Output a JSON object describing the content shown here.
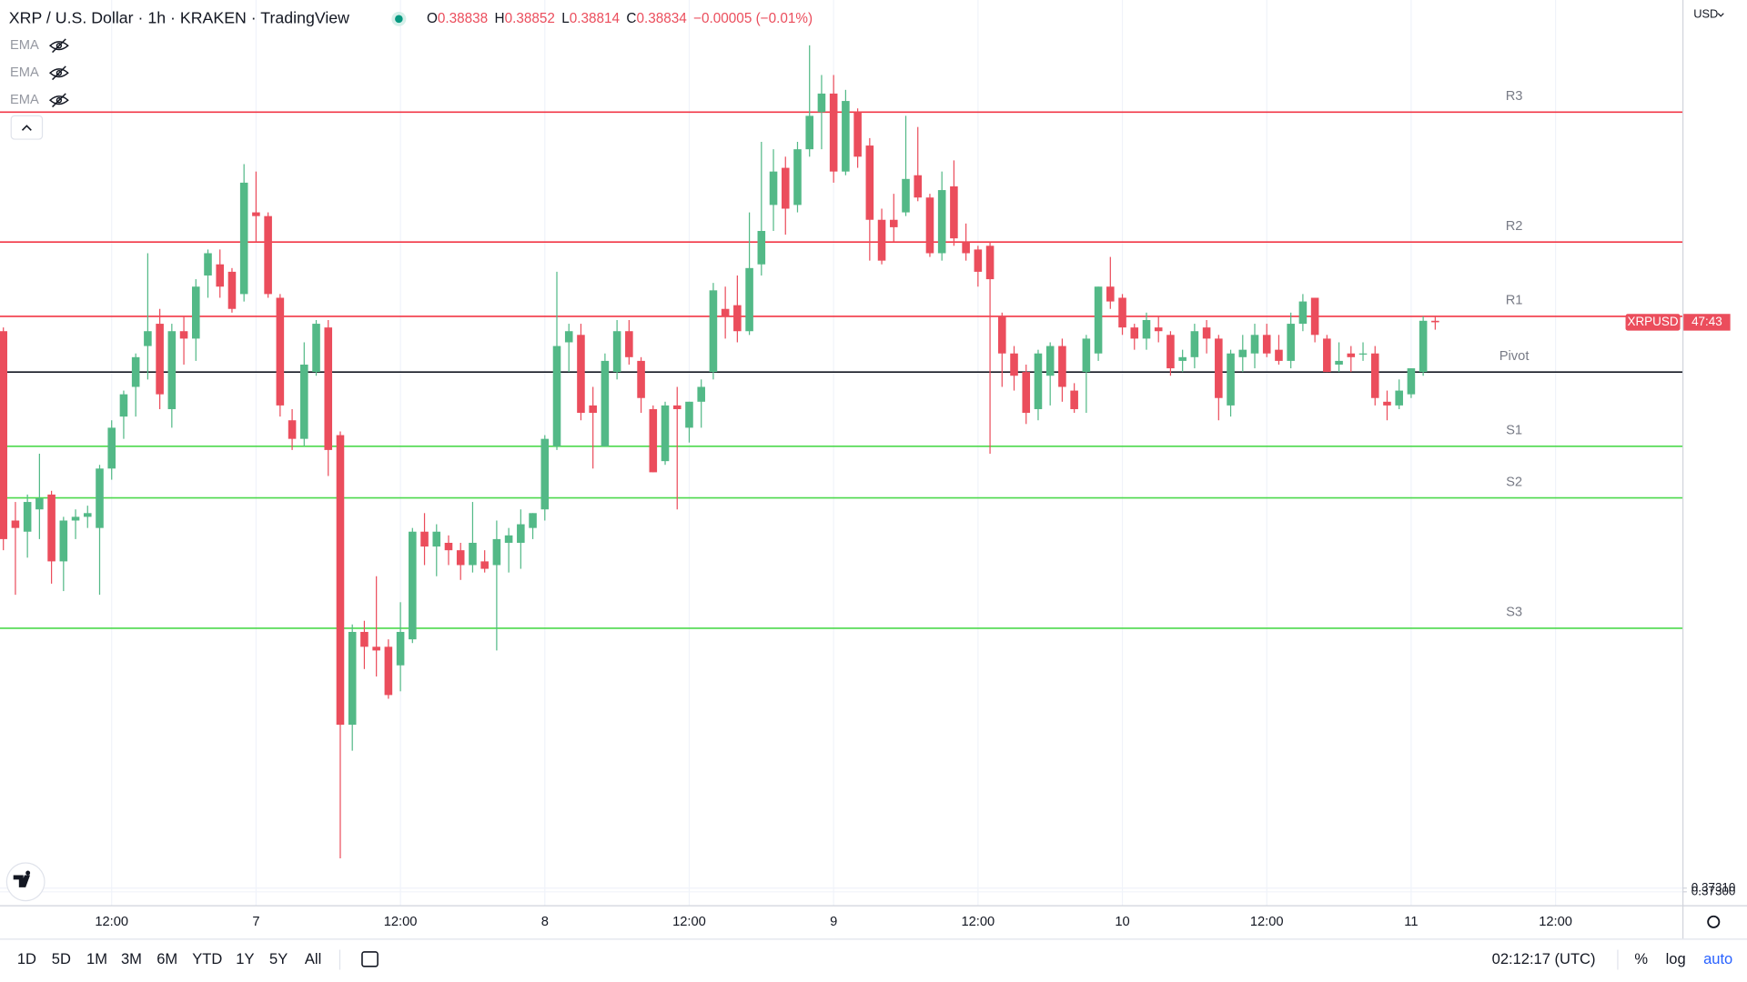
{
  "header": {
    "title": "XRP / U.S. Dollar · 1h · KRAKEN · TradingView",
    "ohlc_keys": [
      "O",
      "H",
      "L",
      "C"
    ],
    "change": "−0.00005 (−0.01%)"
  },
  "indicators": [
    "EMA",
    "EMA",
    "EMA"
  ],
  "currency": "USD",
  "price_tag": {
    "symbol": "XRPUSD",
    "countdown": "47:43"
  },
  "toolbar": {
    "ranges": [
      "1D",
      "5D",
      "1M",
      "3M",
      "6M",
      "YTD",
      "1Y",
      "5Y",
      "All"
    ],
    "clock": "02:12:17 (UTC)",
    "scale_options": [
      "%",
      "log",
      "auto"
    ]
  },
  "chart_data": {
    "type": "candlestick",
    "up_color": "#53b987",
    "down_color": "#eb4d5c",
    "grid": true,
    "x": [
      0,
      1,
      2,
      3,
      4,
      5,
      6,
      7,
      8,
      9,
      10,
      11,
      12,
      13,
      14,
      15,
      16,
      17,
      18,
      19,
      20,
      21,
      22,
      23,
      24,
      25,
      26,
      27,
      28,
      29,
      30,
      31,
      32,
      33,
      34,
      35,
      36,
      37,
      38,
      39,
      40,
      41,
      42,
      43,
      44,
      45,
      46,
      47,
      48,
      49,
      50,
      51,
      52,
      53,
      54,
      55,
      56,
      57,
      58,
      59,
      60,
      61,
      62,
      63,
      64,
      65,
      66,
      67,
      68,
      69,
      70,
      71,
      72,
      73,
      74,
      75,
      76,
      77,
      78,
      79,
      80,
      81,
      82,
      83,
      84,
      85,
      86,
      87,
      88,
      89,
      90,
      91,
      92,
      93,
      94,
      95,
      96,
      97,
      98,
      99,
      100,
      101,
      102,
      103,
      104,
      105,
      106,
      107,
      108,
      109,
      110,
      111,
      112,
      113,
      114,
      115,
      116,
      117,
      118,
      119
    ],
    "open": [
      0.3881,
      0.383,
      0.3827,
      0.3833,
      0.3837,
      0.3819,
      0.383,
      0.3831,
      0.3828,
      0.3844,
      0.3858,
      0.3866,
      0.3877,
      0.3883,
      0.386,
      0.3881,
      0.3879,
      0.3896,
      0.3899,
      0.3897,
      0.3891,
      0.3913,
      0.3912,
      0.389,
      0.3857,
      0.3852,
      0.387,
      0.3882,
      0.3853,
      0.3775,
      0.38,
      0.3796,
      0.3796,
      0.3791,
      0.3798,
      0.3827,
      0.3823,
      0.3824,
      0.3822,
      0.3818,
      0.3819,
      0.3818,
      0.3824,
      0.3824,
      0.3828,
      0.3833,
      0.385,
      0.3878,
      0.388,
      0.3861,
      0.385,
      0.387,
      0.3881,
      0.3873,
      0.386,
      0.3846,
      0.3861,
      0.3855,
      0.3862,
      0.387,
      0.3887,
      0.3888,
      0.3881,
      0.3899,
      0.3915,
      0.3925,
      0.3915,
      0.393,
      0.394,
      0.3945,
      0.3924,
      0.394,
      0.3931,
      0.3911,
      0.3911,
      0.3913,
      0.3923,
      0.3917,
      0.3902,
      0.392,
      0.3905,
      0.3903,
      0.3904,
      0.3885,
      0.3875,
      0.387,
      0.386,
      0.3869,
      0.3877,
      0.3865,
      0.387,
      0.3875,
      0.3893,
      0.389,
      0.3882,
      0.3879,
      0.3882,
      0.388,
      0.3873,
      0.3874,
      0.3882,
      0.3879,
      0.3861,
      0.3874,
      0.3875,
      0.388,
      0.3876,
      0.3873,
      0.3883,
      0.389,
      0.3879,
      0.3872,
      0.3875,
      0.3875,
      0.3875,
      0.3862,
      0.3861,
      0.3864,
      0.387,
      0.38838
    ],
    "high": [
      0.3882,
      0.3835,
      0.3837,
      0.3848,
      0.3838,
      0.3831,
      0.3833,
      0.3834,
      0.3845,
      0.3857,
      0.3865,
      0.3875,
      0.3902,
      0.3887,
      0.3883,
      0.3885,
      0.3895,
      0.3903,
      0.3903,
      0.3898,
      0.3926,
      0.3924,
      0.3913,
      0.3891,
      0.386,
      0.3878,
      0.3884,
      0.3884,
      0.3854,
      0.3802,
      0.3803,
      0.3815,
      0.3798,
      0.3808,
      0.3828,
      0.3832,
      0.3829,
      0.3826,
      0.3824,
      0.3835,
      0.3822,
      0.383,
      0.3828,
      0.3833,
      0.3832,
      0.3853,
      0.3897,
      0.3883,
      0.3883,
      0.3866,
      0.3875,
      0.3884,
      0.3884,
      0.3874,
      0.3861,
      0.3862,
      0.3866,
      0.3862,
      0.3868,
      0.3894,
      0.3893,
      0.3896,
      0.3913,
      0.3932,
      0.393,
      0.3928,
      0.3932,
      0.3958,
      0.395,
      0.395,
      0.3946,
      0.3941,
      0.3933,
      0.3914,
      0.3918,
      0.3939,
      0.3936,
      0.3918,
      0.3924,
      0.3927,
      0.391,
      0.3904,
      0.3905,
      0.3886,
      0.3877,
      0.3872,
      0.3876,
      0.3878,
      0.3879,
      0.3867,
      0.388,
      0.3893,
      0.3901,
      0.3891,
      0.3883,
      0.3886,
      0.3885,
      0.3881,
      0.3876,
      0.3883,
      0.3884,
      0.388,
      0.3876,
      0.388,
      0.3883,
      0.3883,
      0.388,
      0.3886,
      0.3891,
      0.389,
      0.388,
      0.3878,
      0.3877,
      0.3878,
      0.3877,
      0.3865,
      0.3868,
      0.3871,
      0.3885,
      0.38852
    ],
    "low": [
      0.3822,
      0.381,
      0.382,
      0.3825,
      0.3813,
      0.3811,
      0.3825,
      0.3828,
      0.381,
      0.3841,
      0.3852,
      0.3858,
      0.3868,
      0.386,
      0.3855,
      0.3872,
      0.3873,
      0.389,
      0.389,
      0.3886,
      0.3889,
      0.3905,
      0.389,
      0.3858,
      0.3849,
      0.385,
      0.3869,
      0.3842,
      0.3739,
      0.3768,
      0.379,
      0.3788,
      0.3782,
      0.3784,
      0.3797,
      0.3818,
      0.3815,
      0.3818,
      0.3814,
      0.3816,
      0.3816,
      0.3795,
      0.3816,
      0.3817,
      0.3825,
      0.383,
      0.3849,
      0.387,
      0.3857,
      0.3844,
      0.385,
      0.3868,
      0.3872,
      0.3859,
      0.3843,
      0.3845,
      0.3833,
      0.3851,
      0.3855,
      0.3868,
      0.3879,
      0.3878,
      0.388,
      0.3896,
      0.3908,
      0.3907,
      0.3913,
      0.3928,
      0.393,
      0.3921,
      0.3923,
      0.3925,
      0.39,
      0.3899,
      0.3905,
      0.3912,
      0.3916,
      0.3901,
      0.39,
      0.3904,
      0.39,
      0.3893,
      0.3848,
      0.3866,
      0.3865,
      0.3856,
      0.3857,
      0.3861,
      0.3862,
      0.3859,
      0.3859,
      0.3873,
      0.3887,
      0.388,
      0.3876,
      0.3876,
      0.3878,
      0.3869,
      0.387,
      0.3871,
      0.3875,
      0.3857,
      0.3858,
      0.387,
      0.3871,
      0.3874,
      0.3872,
      0.3871,
      0.3881,
      0.3878,
      0.387,
      0.387,
      0.387,
      0.3873,
      0.3861,
      0.3857,
      0.386,
      0.3863,
      0.3869,
      0.38814
    ],
    "close": [
      0.3825,
      0.3828,
      0.3835,
      0.3836,
      0.3819,
      0.383,
      0.3831,
      0.3832,
      0.3844,
      0.3855,
      0.3864,
      0.3874,
      0.3881,
      0.3864,
      0.3881,
      0.3879,
      0.3893,
      0.3902,
      0.3893,
      0.3887,
      0.3921,
      0.3912,
      0.3891,
      0.3861,
      0.3852,
      0.3872,
      0.3883,
      0.3849,
      0.3775,
      0.38,
      0.3796,
      0.3795,
      0.3783,
      0.38,
      0.3827,
      0.3823,
      0.3827,
      0.3822,
      0.3818,
      0.3824,
      0.3817,
      0.3825,
      0.3826,
      0.3829,
      0.3832,
      0.3852,
      0.3877,
      0.3881,
      0.3859,
      0.3859,
      0.3873,
      0.3881,
      0.3874,
      0.3863,
      0.3843,
      0.3861,
      0.386,
      0.3862,
      0.3866,
      0.3892,
      0.3885,
      0.3881,
      0.3898,
      0.3908,
      0.3924,
      0.3914,
      0.393,
      0.3939,
      0.3945,
      0.3924,
      0.3943,
      0.3928,
      0.3911,
      0.39,
      0.3909,
      0.3922,
      0.3917,
      0.3902,
      0.3919,
      0.3906,
      0.3902,
      0.3897,
      0.3895,
      0.3875,
      0.3869,
      0.3859,
      0.3875,
      0.3877,
      0.3866,
      0.386,
      0.3879,
      0.3893,
      0.3889,
      0.3882,
      0.3879,
      0.3884,
      0.3881,
      0.3871,
      0.3874,
      0.3881,
      0.3879,
      0.3863,
      0.3875,
      0.3876,
      0.388,
      0.3875,
      0.3873,
      0.3883,
      0.3889,
      0.388,
      0.387,
      0.3873,
      0.3874,
      0.3875,
      0.3863,
      0.3861,
      0.3865,
      0.3871,
      0.38838,
      0.38834
    ],
    "xlim": [
      -0.28,
      139.54
    ],
    "xticks": [
      {
        "value": 9,
        "label": "12:00"
      },
      21,
      33,
      45,
      57,
      69,
      81,
      93,
      105,
      117,
      129
    ],
    "xtick_labels": [
      "12:00",
      "7",
      "12:00",
      "8",
      "12:00",
      "9",
      "12:00",
      "10",
      "12:00",
      "11",
      "12:00"
    ],
    "ylim": [
      0.37264,
      0.39702
    ],
    "yticks": [
      {
        "value": 0.373,
        "label": "0.37300"
      },
      {
        "value": 0.3731,
        "label": "0.37310"
      }
    ],
    "hlines": [
      {
        "label": "R3",
        "value": 0.394,
        "color": "#f23645"
      },
      {
        "label": "R2",
        "value": 0.3905,
        "color": "#f23645"
      },
      {
        "label": "R1",
        "value": 0.3885,
        "color": "#f23645"
      },
      {
        "label": "Pivot",
        "value": 0.387,
        "color": "#131722"
      },
      {
        "label": "S1",
        "value": 0.385,
        "color": "#4cd94c"
      },
      {
        "label": "S2",
        "value": 0.38361,
        "color": "#4cd94c"
      },
      {
        "label": "S3",
        "value": 0.3801,
        "color": "#4cd94c"
      }
    ]
  }
}
